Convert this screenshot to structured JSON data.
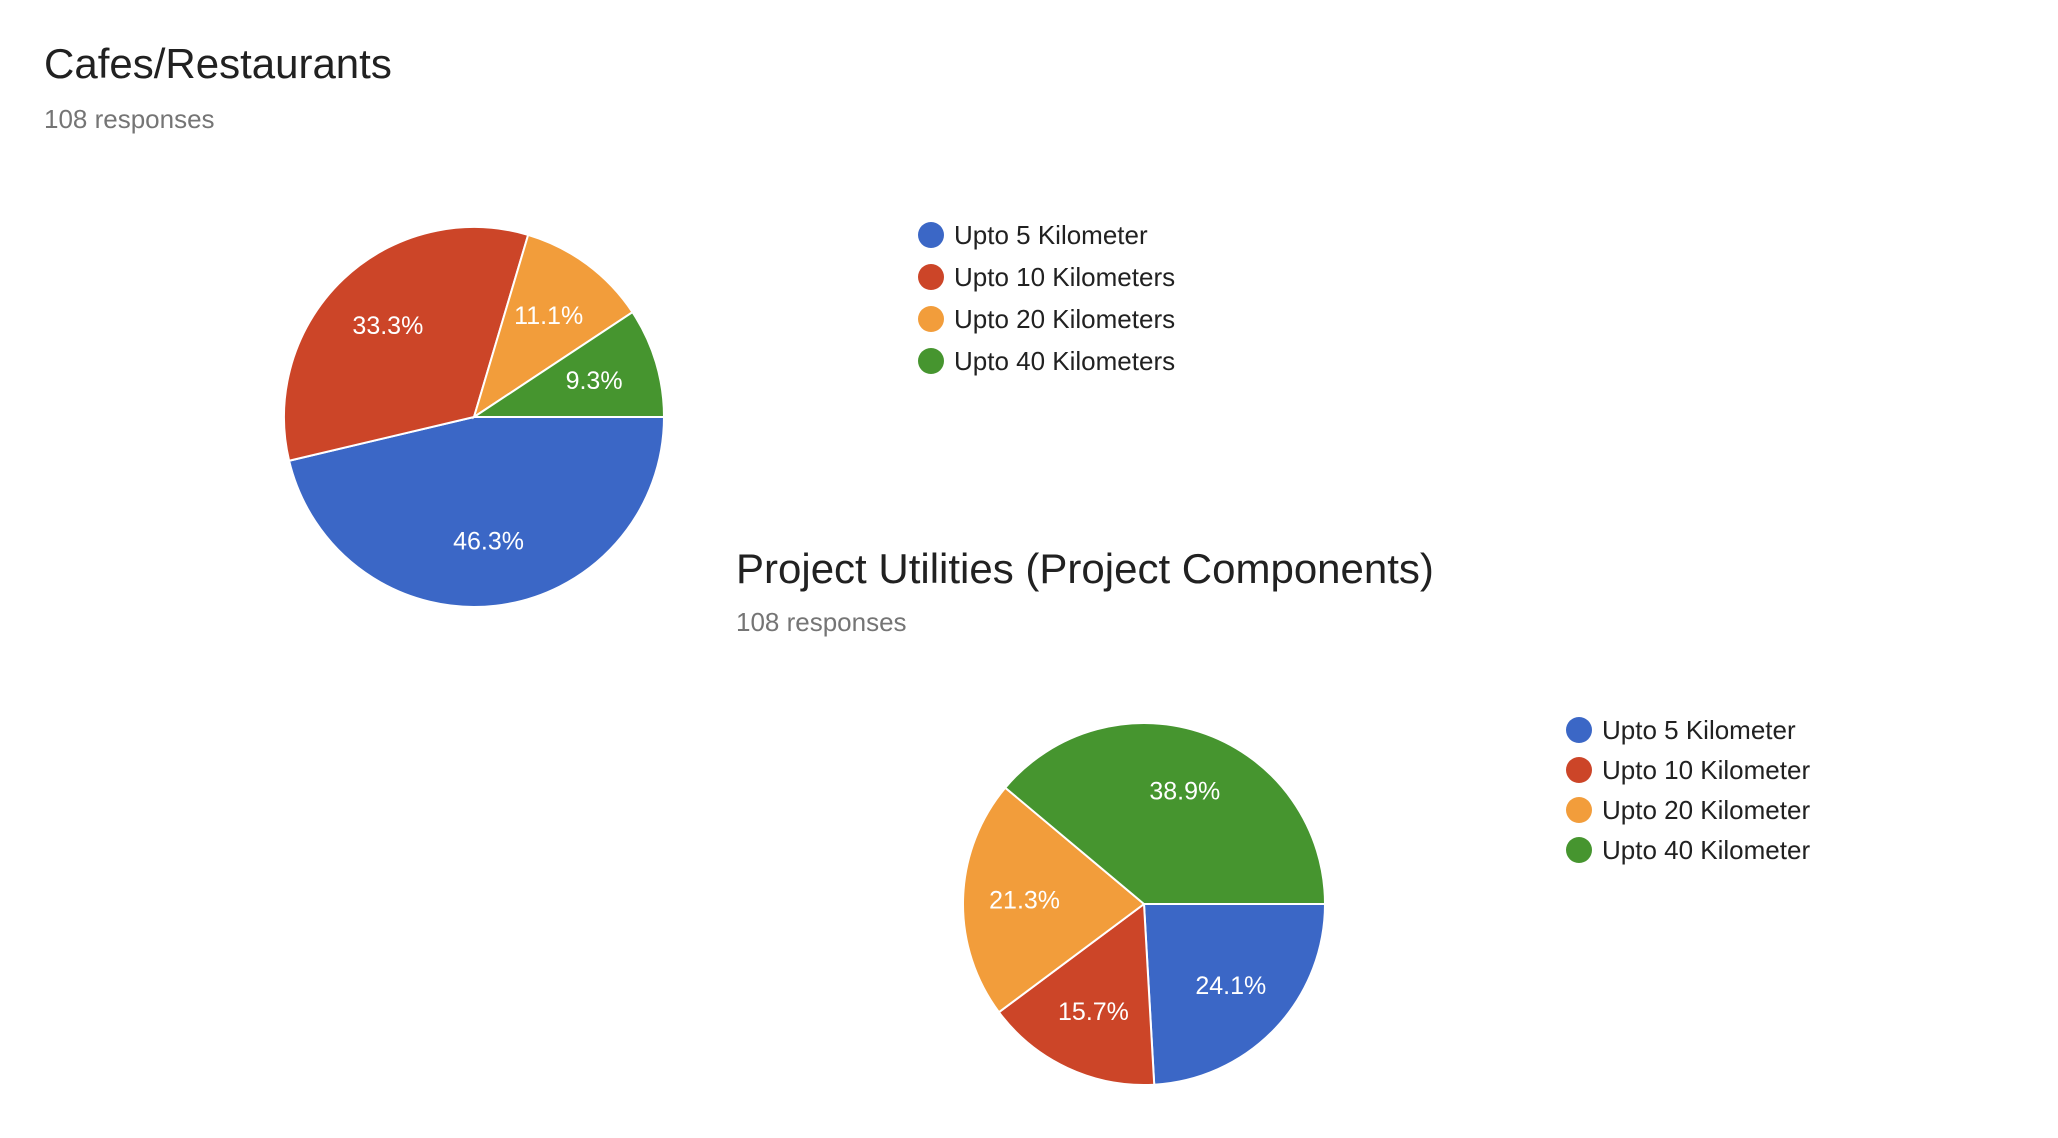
{
  "colors": {
    "blue": "#3b67c6",
    "red": "#cc4528",
    "orange": "#f29d3b",
    "green": "#46952f"
  },
  "chart_data": [
    {
      "type": "pie",
      "title": "Cafes/Restaurants",
      "subtitle": "108 responses",
      "legend_position": "right",
      "slices": [
        {
          "label": "Upto 5 Kilometer",
          "value": 46.3,
          "display": "46.3%",
          "color": "#3b67c6"
        },
        {
          "label": "Upto 10 Kilometers",
          "value": 33.3,
          "display": "33.3%",
          "color": "#cc4528"
        },
        {
          "label": "Upto 20 Kilometers",
          "value": 11.1,
          "display": "11.1%",
          "color": "#f29d3b"
        },
        {
          "label": "Upto 40 Kilometers",
          "value": 9.3,
          "display": "9.3%",
          "color": "#46952f"
        }
      ]
    },
    {
      "type": "pie",
      "title": "Project Utilities (Project Components)",
      "subtitle": "108 responses",
      "legend_position": "right",
      "slices": [
        {
          "label": "Upto 5 Kilometer",
          "value": 24.1,
          "display": "24.1%",
          "color": "#3b67c6"
        },
        {
          "label": "Upto 10 Kilometer",
          "value": 15.7,
          "display": "15.7%",
          "color": "#cc4528"
        },
        {
          "label": "Upto 20 Kilometer",
          "value": 21.3,
          "display": "21.3%",
          "color": "#f29d3b"
        },
        {
          "label": "Upto 40 Kilometer",
          "value": 38.9,
          "display": "38.9%",
          "color": "#46952f"
        }
      ]
    }
  ]
}
